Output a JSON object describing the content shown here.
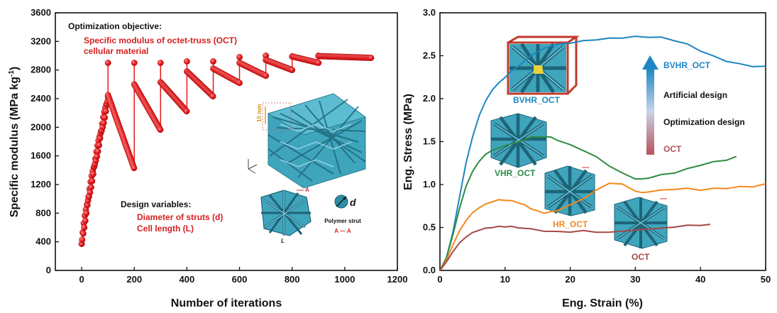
{
  "chart_data": [
    {
      "type": "scatter",
      "xlabel": "Number of iterations",
      "ylabel": "Specific modulus (MPa kg",
      "ylabel_sup": "-1",
      "ylabel_end": ")",
      "xlim": [
        -100,
        1200
      ],
      "ylim": [
        0,
        3600
      ],
      "xticks": [
        0,
        200,
        400,
        600,
        800,
        1000,
        1200
      ],
      "yticks": [
        0,
        400,
        800,
        1200,
        1600,
        2000,
        2400,
        2800,
        3200,
        3600
      ],
      "series_color": "#e8171b",
      "cycles": [
        {
          "start": 0,
          "end": 100,
          "y0": 370,
          "y1": 2400,
          "peak": 2900
        },
        {
          "start": 100,
          "end": 200,
          "y0": 2450,
          "y1": 1420,
          "peak": 2900
        },
        {
          "start": 200,
          "end": 300,
          "y0": 2600,
          "y1": 1960,
          "peak": 2900
        },
        {
          "start": 300,
          "end": 400,
          "y0": 2630,
          "y1": 2220,
          "peak": 2920
        },
        {
          "start": 400,
          "end": 500,
          "y0": 2780,
          "y1": 2430,
          "peak": 2920
        },
        {
          "start": 500,
          "end": 600,
          "y0": 2820,
          "y1": 2620,
          "peak": 2980
        },
        {
          "start": 600,
          "end": 700,
          "y0": 2900,
          "y1": 2720,
          "peak": 3000
        },
        {
          "start": 700,
          "end": 800,
          "y0": 2940,
          "y1": 2800,
          "peak": 2990
        },
        {
          "start": 800,
          "end": 900,
          "y0": 2990,
          "y1": 2900,
          "peak": 3000
        },
        {
          "start": 900,
          "end": 1100,
          "y0": 2995,
          "y1": 2970,
          "peak": 3000
        }
      ],
      "annotations": {
        "objective_title": "Optimization  objective:",
        "objective_line1": "Specific modulus of octet-truss (OCT)",
        "objective_line2": "cellular material",
        "variables_title": "Design variables:",
        "variables_line1": "Diameter of struts (d)",
        "variables_line2": "Cell length (L)",
        "strut_label": "Polymer strut",
        "section_label": "A — A",
        "d_label": "d",
        "L_label": "L",
        "A_label": "A",
        "scale_label": "10 mm"
      }
    },
    {
      "type": "line",
      "xlabel": "Eng. Strain (%)",
      "ylabel": "Eng. Stress (MPa)",
      "xlim": [
        0,
        50
      ],
      "ylim": [
        0,
        3.0
      ],
      "xticks": [
        0,
        10,
        20,
        30,
        40,
        50
      ],
      "yticks": [
        0.0,
        0.5,
        1.0,
        1.5,
        2.0,
        2.5,
        3.0
      ],
      "series": [
        {
          "name": "BVHR_OCT",
          "color": "#1d86c2",
          "x": [
            0,
            1,
            2,
            3,
            4,
            5,
            6,
            7,
            8,
            9,
            10,
            11,
            12,
            14,
            16,
            18,
            20,
            22,
            24,
            26,
            28,
            30,
            32,
            34,
            36,
            38,
            40,
            42,
            44,
            46,
            48,
            50
          ],
          "y": [
            0,
            0.15,
            0.45,
            0.85,
            1.25,
            1.55,
            1.8,
            1.97,
            2.1,
            2.18,
            2.25,
            2.32,
            2.38,
            2.5,
            2.59,
            2.63,
            2.65,
            2.67,
            2.69,
            2.7,
            2.71,
            2.72,
            2.72,
            2.71,
            2.68,
            2.63,
            2.56,
            2.49,
            2.44,
            2.4,
            2.38,
            2.37
          ]
        },
        {
          "name": "VHR_OCT",
          "color": "#2e8a44",
          "x": [
            0,
            1,
            2,
            3,
            4,
            5,
            6,
            7,
            8,
            10,
            12,
            14,
            16,
            17,
            18,
            20,
            22,
            24,
            26,
            28,
            30,
            31,
            32,
            34,
            36,
            38,
            40,
            42,
            44,
            45.5
          ],
          "y": [
            0,
            0.15,
            0.42,
            0.72,
            0.98,
            1.15,
            1.27,
            1.35,
            1.4,
            1.45,
            1.5,
            1.55,
            1.56,
            1.55,
            1.52,
            1.46,
            1.4,
            1.32,
            1.22,
            1.13,
            1.07,
            1.06,
            1.08,
            1.11,
            1.14,
            1.18,
            1.23,
            1.26,
            1.29,
            1.32
          ]
        },
        {
          "name": "HR_OCT",
          "color": "#f5891e",
          "x": [
            0,
            1,
            2,
            3,
            4,
            5,
            6,
            7,
            8,
            9,
            10,
            11,
            12,
            13,
            14,
            15,
            16,
            17,
            18,
            20,
            22,
            24,
            26,
            28,
            30,
            31,
            32,
            34,
            36,
            38,
            40,
            42,
            44,
            46,
            48,
            50
          ],
          "y": [
            0,
            0.12,
            0.3,
            0.46,
            0.58,
            0.67,
            0.73,
            0.77,
            0.8,
            0.82,
            0.82,
            0.81,
            0.79,
            0.76,
            0.72,
            0.69,
            0.67,
            0.68,
            0.7,
            0.76,
            0.84,
            0.93,
            1.02,
            1.0,
            0.93,
            0.9,
            0.92,
            0.93,
            0.95,
            0.95,
            0.94,
            0.95,
            0.96,
            0.97,
            0.98,
            1.0
          ]
        },
        {
          "name": "OCT",
          "color": "#a54848",
          "x": [
            0,
            1,
            2,
            3,
            4,
            5,
            6,
            7,
            8,
            9,
            10,
            11,
            12,
            14,
            16,
            18,
            20,
            22,
            24,
            26,
            36,
            38,
            40,
            41.5
          ],
          "y": [
            0,
            0.1,
            0.22,
            0.32,
            0.39,
            0.44,
            0.47,
            0.49,
            0.5,
            0.51,
            0.51,
            0.51,
            0.5,
            0.48,
            0.46,
            0.45,
            0.45,
            0.46,
            0.45,
            0.44,
            0.51,
            0.52,
            0.53,
            0.53
          ]
        }
      ],
      "legend": {
        "top_label": "BVHR_OCT",
        "mid_label_1": "Artificial design",
        "mid_label_2": "Optimization design",
        "bottom_label": "OCT",
        "arrow_top_color": "#1d86c2",
        "arrow_bottom_color": "#b5525a"
      },
      "curve_labels": [
        "BVHR_OCT",
        "VHR_OCT",
        "HR_OCT",
        "OCT"
      ]
    }
  ]
}
